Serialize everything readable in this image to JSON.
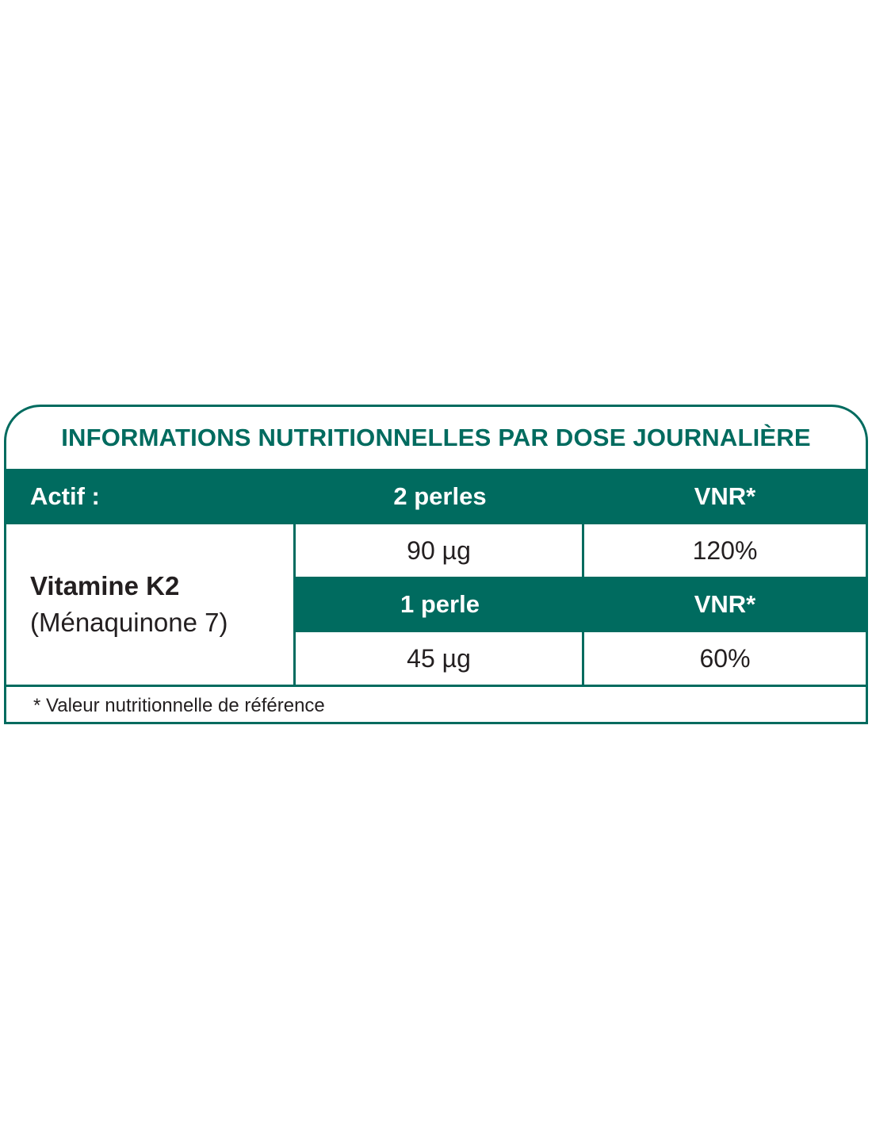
{
  "title": "INFORMATIONS NUTRITIONNELLES PAR DOSE JOURNALIÈRE",
  "header": {
    "col1": "Actif :",
    "col2": "2 perles",
    "col3": "VNR*"
  },
  "ingredient": {
    "name": "Vitamine K2",
    "detail": "(Ménaquinone 7)"
  },
  "dose_two": {
    "amount": "90 µg",
    "vnr": "120%"
  },
  "sub_header": {
    "col2": "1 perle",
    "col3": "VNR*"
  },
  "dose_one": {
    "amount": "45 µg",
    "vnr": "60%"
  },
  "footnote": "* Valeur nutritionnelle de référence",
  "colors": {
    "accent": "#006b5f",
    "text": "#231f20"
  }
}
